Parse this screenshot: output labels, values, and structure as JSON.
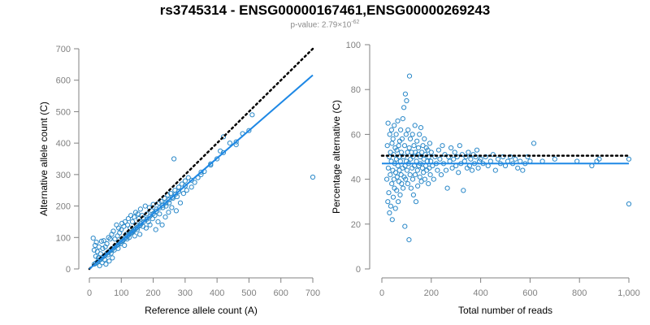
{
  "title": "rs3745314 - ENSG00000167461,ENSG00000269243",
  "subtitle": {
    "prefix": "p-value: 2.79×10",
    "exponent": "-62"
  },
  "colors": {
    "points": "#2a88c8",
    "fit_line": "#1e88e5",
    "reference_line": "#000000",
    "axis": "#808080"
  },
  "chart_data": [
    {
      "type": "scatter",
      "title": "",
      "xlabel": "Reference allele count (A)",
      "ylabel": "Alternative allele count (C)",
      "xlim": [
        0,
        700
      ],
      "ylim": [
        0,
        700
      ],
      "x_ticks": [
        "0",
        "100",
        "200",
        "300",
        "400",
        "500",
        "600",
        "700"
      ],
      "y_ticks": [
        "0",
        "100",
        "200",
        "300",
        "400",
        "500",
        "600",
        "700"
      ],
      "grid": false,
      "reference_line": {
        "style": "dotted",
        "slope": 1.0,
        "intercept": 0,
        "x_range": [
          0,
          700
        ]
      },
      "fit_line": {
        "style": "solid",
        "slope": 0.88,
        "intercept": 0,
        "x_range": [
          0,
          700
        ]
      },
      "points": [
        [
          15,
          15
        ],
        [
          20,
          18
        ],
        [
          25,
          22
        ],
        [
          30,
          27
        ],
        [
          35,
          30
        ],
        [
          40,
          36
        ],
        [
          45,
          40
        ],
        [
          50,
          44
        ],
        [
          55,
          50
        ],
        [
          60,
          53
        ],
        [
          65,
          58
        ],
        [
          70,
          60
        ],
        [
          75,
          66
        ],
        [
          80,
          70
        ],
        [
          85,
          74
        ],
        [
          90,
          78
        ],
        [
          95,
          84
        ],
        [
          100,
          88
        ],
        [
          105,
          92
        ],
        [
          110,
          97
        ],
        [
          115,
          100
        ],
        [
          120,
          105
        ],
        [
          125,
          110
        ],
        [
          130,
          114
        ],
        [
          135,
          118
        ],
        [
          140,
          124
        ],
        [
          145,
          128
        ],
        [
          150,
          132
        ],
        [
          155,
          136
        ],
        [
          160,
          140
        ],
        [
          170,
          150
        ],
        [
          180,
          158
        ],
        [
          190,
          168
        ],
        [
          200,
          176
        ],
        [
          210,
          184
        ],
        [
          220,
          194
        ],
        [
          230,
          202
        ],
        [
          240,
          210
        ],
        [
          250,
          220
        ],
        [
          260,
          228
        ],
        [
          270,
          238
        ],
        [
          280,
          246
        ],
        [
          300,
          264
        ],
        [
          320,
          282
        ],
        [
          350,
          308
        ],
        [
          380,
          334
        ],
        [
          420,
          370
        ],
        [
          460,
          404
        ],
        [
          500,
          440
        ],
        [
          12,
          98
        ],
        [
          15,
          60
        ],
        [
          18,
          75
        ],
        [
          20,
          40
        ],
        [
          22,
          85
        ],
        [
          25,
          55
        ],
        [
          28,
          35
        ],
        [
          30,
          70
        ],
        [
          32,
          10
        ],
        [
          35,
          48
        ],
        [
          38,
          88
        ],
        [
          40,
          20
        ],
        [
          42,
          65
        ],
        [
          45,
          90
        ],
        [
          48,
          30
        ],
        [
          50,
          70
        ],
        [
          52,
          15
        ],
        [
          55,
          80
        ],
        [
          58,
          45
        ],
        [
          60,
          100
        ],
        [
          62,
          25
        ],
        [
          65,
          95
        ],
        [
          68,
          50
        ],
        [
          70,
          110
        ],
        [
          72,
          35
        ],
        [
          75,
          120
        ],
        [
          78,
          60
        ],
        [
          80,
          95
        ],
        [
          85,
          140
        ],
        [
          88,
          105
        ],
        [
          90,
          65
        ],
        [
          92,
          130
        ],
        [
          95,
          115
        ],
        [
          98,
          80
        ],
        [
          100,
          125
        ],
        [
          102,
          145
        ],
        [
          105,
          90
        ],
        [
          108,
          135
        ],
        [
          110,
          75
        ],
        [
          112,
          150
        ],
        [
          115,
          110
        ],
        [
          118,
          95
        ],
        [
          120,
          140
        ],
        [
          122,
          160
        ],
        [
          125,
          100
        ],
        [
          128,
          130
        ],
        [
          130,
          170
        ],
        [
          132,
          115
        ],
        [
          135,
          150
        ],
        [
          138,
          120
        ],
        [
          140,
          165
        ],
        [
          142,
          105
        ],
        [
          145,
          180
        ],
        [
          148,
          140
        ],
        [
          150,
          125
        ],
        [
          152,
          175
        ],
        [
          155,
          160
        ],
        [
          158,
          110
        ],
        [
          160,
          190
        ],
        [
          162,
          145
        ],
        [
          165,
          170
        ],
        [
          168,
          135
        ],
        [
          170,
          160
        ],
        [
          175,
          200
        ],
        [
          178,
          130
        ],
        [
          180,
          175
        ],
        [
          185,
          150
        ],
        [
          188,
          195
        ],
        [
          190,
          140
        ],
        [
          195,
          185
        ],
        [
          198,
          160
        ],
        [
          200,
          205
        ],
        [
          205,
          170
        ],
        [
          208,
          125
        ],
        [
          210,
          190
        ],
        [
          215,
          150
        ],
        [
          218,
          210
        ],
        [
          220,
          175
        ],
        [
          225,
          215
        ],
        [
          228,
          140
        ],
        [
          230,
          195
        ],
        [
          235,
          225
        ],
        [
          238,
          165
        ],
        [
          240,
          200
        ],
        [
          245,
          235
        ],
        [
          248,
          180
        ],
        [
          250,
          210
        ],
        [
          255,
          240
        ],
        [
          258,
          195
        ],
        [
          262,
          225
        ],
        [
          265,
          350
        ],
        [
          268,
          250
        ],
        [
          272,
          185
        ],
        [
          275,
          230
        ],
        [
          280,
          260
        ],
        [
          285,
          210
        ],
        [
          290,
          270
        ],
        [
          295,
          240
        ],
        [
          300,
          280
        ],
        [
          305,
          250
        ],
        [
          310,
          290
        ],
        [
          320,
          260
        ],
        [
          330,
          275
        ],
        [
          340,
          290
        ],
        [
          350,
          300
        ],
        [
          360,
          310
        ],
        [
          380,
          330
        ],
        [
          400,
          350
        ],
        [
          410,
          375
        ],
        [
          420,
          420
        ],
        [
          440,
          400
        ],
        [
          460,
          395
        ],
        [
          480,
          430
        ],
        [
          510,
          490
        ],
        [
          700,
          292
        ]
      ]
    },
    {
      "type": "scatter",
      "title": "",
      "xlabel": "Total number of reads",
      "ylabel": "Percentage alternative (C)",
      "xlim": [
        0,
        1000
      ],
      "ylim": [
        0,
        100
      ],
      "x_ticks": [
        "0",
        "200",
        "400",
        "600",
        "800",
        "1,000"
      ],
      "y_ticks": [
        "0",
        "20",
        "40",
        "60",
        "80",
        "100"
      ],
      "grid": false,
      "reference_line": {
        "style": "dotted",
        "y": 50.5,
        "x_range": [
          0,
          1000
        ]
      },
      "fit_line": {
        "style": "solid",
        "y": 47,
        "x_range": [
          0,
          1000
        ]
      },
      "points": [
        [
          20,
          40
        ],
        [
          22,
          55
        ],
        [
          24,
          30
        ],
        [
          25,
          65
        ],
        [
          26,
          45
        ],
        [
          28,
          34
        ],
        [
          30,
          50
        ],
        [
          31,
          25
        ],
        [
          32,
          60
        ],
        [
          34,
          42
        ],
        [
          35,
          52
        ],
        [
          36,
          28
        ],
        [
          38,
          48
        ],
        [
          39,
          62
        ],
        [
          40,
          38
        ],
        [
          41,
          56
        ],
        [
          42,
          22
        ],
        [
          44,
          44
        ],
        [
          45,
          58
        ],
        [
          46,
          32
        ],
        [
          48,
          51
        ],
        [
          49,
          40
        ],
        [
          50,
          64
        ],
        [
          51,
          36
        ],
        [
          52,
          47
        ],
        [
          54,
          54
        ],
        [
          55,
          27
        ],
        [
          56,
          43
        ],
        [
          58,
          60
        ],
        [
          59,
          49
        ],
        [
          60,
          35
        ],
        [
          61,
          53
        ],
        [
          62,
          41
        ],
        [
          64,
          66
        ],
        [
          65,
          46
        ],
        [
          66,
          30
        ],
        [
          68,
          55
        ],
        [
          69,
          39
        ],
        [
          70,
          50
        ],
        [
          71,
          44
        ],
        [
          72,
          57
        ],
        [
          74,
          33
        ],
        [
          75,
          48
        ],
        [
          76,
          62
        ],
        [
          78,
          42
        ],
        [
          79,
          52
        ],
        [
          80,
          38
        ],
        [
          82,
          58
        ],
        [
          84,
          45
        ],
        [
          85,
          67
        ],
        [
          86,
          36
        ],
        [
          88,
          50
        ],
        [
          89,
          72
        ],
        [
          90,
          41
        ],
        [
          92,
          55
        ],
        [
          93,
          19
        ],
        [
          94,
          46
        ],
        [
          95,
          78
        ],
        [
          96,
          40
        ],
        [
          98,
          60
        ],
        [
          99,
          48
        ],
        [
          100,
          75
        ],
        [
          102,
          44
        ],
        [
          104,
          52
        ],
        [
          105,
          38
        ],
        [
          106,
          62
        ],
        [
          108,
          47
        ],
        [
          110,
          13
        ],
        [
          111,
          54
        ],
        [
          112,
          86
        ],
        [
          114,
          42
        ],
        [
          115,
          58
        ],
        [
          116,
          49
        ],
        [
          118,
          36
        ],
        [
          120,
          52
        ],
        [
          122,
          45
        ],
        [
          124,
          60
        ],
        [
          125,
          40
        ],
        [
          126,
          50
        ],
        [
          128,
          33
        ],
        [
          130,
          55
        ],
        [
          132,
          46
        ],
        [
          134,
          64
        ],
        [
          135,
          42
        ],
        [
          136,
          52
        ],
        [
          138,
          30
        ],
        [
          140,
          48
        ],
        [
          142,
          57
        ],
        [
          144,
          44
        ],
        [
          145,
          37
        ],
        [
          146,
          51
        ],
        [
          148,
          54
        ],
        [
          150,
          46
        ],
        [
          152,
          60
        ],
        [
          154,
          41
        ],
        [
          155,
          50
        ],
        [
          156,
          47
        ],
        [
          158,
          63
        ],
        [
          160,
          39
        ],
        [
          162,
          52
        ],
        [
          164,
          45
        ],
        [
          166,
          55
        ],
        [
          168,
          43
        ],
        [
          170,
          49
        ],
        [
          172,
          58
        ],
        [
          174,
          40
        ],
        [
          176,
          51
        ],
        [
          178,
          46
        ],
        [
          180,
          54
        ],
        [
          182,
          44
        ],
        [
          184,
          48
        ],
        [
          186,
          53
        ],
        [
          188,
          38
        ],
        [
          190,
          50
        ],
        [
          192,
          45
        ],
        [
          194,
          56
        ],
        [
          196,
          42
        ],
        [
          198,
          48
        ],
        [
          200,
          52
        ],
        [
          205,
          46
        ],
        [
          210,
          40
        ],
        [
          215,
          50
        ],
        [
          220,
          47
        ],
        [
          225,
          44
        ],
        [
          230,
          53
        ],
        [
          235,
          49
        ],
        [
          240,
          42
        ],
        [
          245,
          55
        ],
        [
          250,
          47
        ],
        [
          255,
          51
        ],
        [
          260,
          44
        ],
        [
          265,
          36
        ],
        [
          270,
          50
        ],
        [
          275,
          48
        ],
        [
          280,
          54
        ],
        [
          285,
          45
        ],
        [
          290,
          49
        ],
        [
          295,
          52
        ],
        [
          300,
          46
        ],
        [
          305,
          50
        ],
        [
          310,
          43
        ],
        [
          315,
          55
        ],
        [
          320,
          47
        ],
        [
          325,
          51
        ],
        [
          330,
          35
        ],
        [
          335,
          48
        ],
        [
          340,
          50
        ],
        [
          345,
          45
        ],
        [
          350,
          52
        ],
        [
          355,
          46
        ],
        [
          360,
          49
        ],
        [
          365,
          44
        ],
        [
          370,
          51
        ],
        [
          375,
          47
        ],
        [
          380,
          50
        ],
        [
          385,
          53
        ],
        [
          390,
          45
        ],
        [
          395,
          48
        ],
        [
          400,
          49
        ],
        [
          410,
          47
        ],
        [
          420,
          50
        ],
        [
          430,
          46
        ],
        [
          440,
          48
        ],
        [
          450,
          51
        ],
        [
          460,
          44
        ],
        [
          470,
          49
        ],
        [
          480,
          47
        ],
        [
          490,
          50
        ],
        [
          500,
          46
        ],
        [
          510,
          48
        ],
        [
          520,
          50
        ],
        [
          530,
          47
        ],
        [
          540,
          49
        ],
        [
          550,
          45
        ],
        [
          560,
          48
        ],
        [
          570,
          44
        ],
        [
          580,
          47
        ],
        [
          590,
          50
        ],
        [
          600,
          48
        ],
        [
          615,
          56
        ],
        [
          650,
          48
        ],
        [
          700,
          49
        ],
        [
          790,
          48
        ],
        [
          850,
          46
        ],
        [
          870,
          48
        ],
        [
          880,
          49
        ],
        [
          1000,
          49
        ],
        [
          1000,
          29
        ]
      ]
    }
  ]
}
